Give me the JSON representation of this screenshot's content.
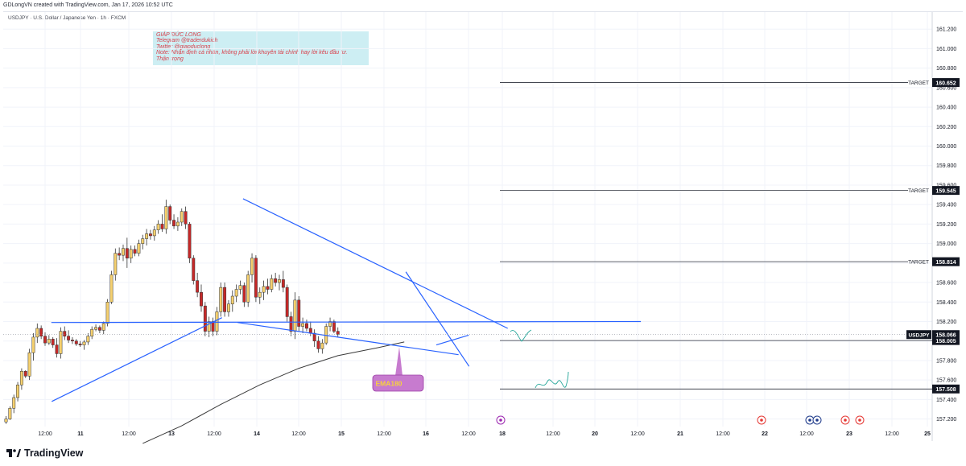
{
  "header": {
    "credit": "GDLongVN created with TradingView.com, Jan 17, 2026 10:52 UTC",
    "symbol_line": "USDJPY · U.S. Dollar / Japanese Yen · 1h · FXCM"
  },
  "note": {
    "lines": [
      "GIÁP ĐỨC LONG",
      "Telegram @traderdukich",
      "Twitter @giapduclong",
      "Note: Nhận định cá nhân, không phải lời khuyên tài chính hay lời kêu đầu tư.",
      "Thận trọng"
    ]
  },
  "footer": {
    "brand": "TradingView",
    "logo_icon": "tradingview-logo-icon"
  },
  "chart_data": {
    "type": "candlestick",
    "symbol": "USDJPY",
    "timeframe": "1h",
    "y_range": [
      157.0,
      161.4
    ],
    "y_ticks": [
      "161.200",
      "161.000",
      "160.800",
      "160.600",
      "160.400",
      "160.200",
      "160.000",
      "159.800",
      "159.600",
      "159.400",
      "159.200",
      "159.000",
      "158.800",
      "158.600",
      "158.400",
      "158.200",
      "158.000",
      "157.800",
      "157.600",
      "157.400",
      "157.200"
    ],
    "x_ticks": [
      "12:00",
      "11",
      "12:00",
      "13",
      "12:00",
      "14",
      "12:00",
      "15",
      "12:00",
      "16",
      "12:00",
      "18",
      "12:00",
      "20",
      "12:00",
      "21",
      "12:00",
      "22",
      "12:00",
      "23",
      "12:00",
      "25"
    ],
    "up_color": "#f5d06e",
    "down_color": "#c62828",
    "candles": [
      [
        157.17,
        157.15,
        157.23,
        157.2
      ],
      [
        157.2,
        157.19,
        157.33,
        157.31
      ],
      [
        157.31,
        157.26,
        157.45,
        157.42
      ],
      [
        157.42,
        157.38,
        157.58,
        157.55
      ],
      [
        157.55,
        157.5,
        157.72,
        157.69
      ],
      [
        157.69,
        157.62,
        157.7,
        157.64
      ],
      [
        157.64,
        157.6,
        157.92,
        157.88
      ],
      [
        157.88,
        157.8,
        158.08,
        158.04
      ],
      [
        158.04,
        157.98,
        158.18,
        158.13
      ],
      [
        158.13,
        158.02,
        158.16,
        158.05
      ],
      [
        158.05,
        157.95,
        158.09,
        157.98
      ],
      [
        157.98,
        157.96,
        158.06,
        158.02
      ],
      [
        158.02,
        157.93,
        158.04,
        157.96
      ],
      [
        157.96,
        157.83,
        158.03,
        157.87
      ],
      [
        157.87,
        157.82,
        158.14,
        158.1
      ],
      [
        158.1,
        158.01,
        158.15,
        158.05
      ],
      [
        158.05,
        157.98,
        158.11,
        158.01
      ],
      [
        158.01,
        157.97,
        158.04,
        158.0
      ],
      [
        158.0,
        157.95,
        158.02,
        157.97
      ],
      [
        157.97,
        157.94,
        158.0,
        157.96
      ],
      [
        157.96,
        157.91,
        158.01,
        157.99
      ],
      [
        157.99,
        157.96,
        158.08,
        158.05
      ],
      [
        158.05,
        158.02,
        158.15,
        158.12
      ],
      [
        158.12,
        158.1,
        158.17,
        158.14
      ],
      [
        158.14,
        158.08,
        158.16,
        158.11
      ],
      [
        158.11,
        158.07,
        158.2,
        158.18
      ],
      [
        158.18,
        158.15,
        158.43,
        158.4
      ],
      [
        158.4,
        158.38,
        158.72,
        158.68
      ],
      [
        158.68,
        158.62,
        158.95,
        158.9
      ],
      [
        158.9,
        158.83,
        158.96,
        158.88
      ],
      [
        158.88,
        158.82,
        158.99,
        158.95
      ],
      [
        158.95,
        158.75,
        159.06,
        158.85
      ],
      [
        158.85,
        158.8,
        158.98,
        158.94
      ],
      [
        158.94,
        158.87,
        158.98,
        158.9
      ],
      [
        158.9,
        158.87,
        159.04,
        159.0
      ],
      [
        159.0,
        158.94,
        159.09,
        159.05
      ],
      [
        159.05,
        158.98,
        159.15,
        159.1
      ],
      [
        159.1,
        159.04,
        159.14,
        159.08
      ],
      [
        159.08,
        159.03,
        159.18,
        159.14
      ],
      [
        159.14,
        159.1,
        159.24,
        159.2
      ],
      [
        159.2,
        159.12,
        159.3,
        159.15
      ],
      [
        159.15,
        159.1,
        159.45,
        159.38
      ],
      [
        159.38,
        159.2,
        159.4,
        159.24
      ],
      [
        159.24,
        159.15,
        159.3,
        159.18
      ],
      [
        159.18,
        159.13,
        159.27,
        159.22
      ],
      [
        159.22,
        159.18,
        159.36,
        159.33
      ],
      [
        159.33,
        159.15,
        159.38,
        159.2
      ],
      [
        159.2,
        158.8,
        159.22,
        158.85
      ],
      [
        158.85,
        158.58,
        158.88,
        158.62
      ],
      [
        158.62,
        158.45,
        158.7,
        158.5
      ],
      [
        158.5,
        158.3,
        158.58,
        158.36
      ],
      [
        158.36,
        158.05,
        158.4,
        158.1
      ],
      [
        158.1,
        158.04,
        158.25,
        158.2
      ],
      [
        158.2,
        158.05,
        158.24,
        158.1
      ],
      [
        158.1,
        158.06,
        158.35,
        158.3
      ],
      [
        158.3,
        158.25,
        158.6,
        158.55
      ],
      [
        158.55,
        158.25,
        158.6,
        158.3
      ],
      [
        158.3,
        158.25,
        158.42,
        158.38
      ],
      [
        158.38,
        158.3,
        158.52,
        158.46
      ],
      [
        158.46,
        158.4,
        158.58,
        158.53
      ],
      [
        158.53,
        158.48,
        158.62,
        158.57
      ],
      [
        158.57,
        158.35,
        158.6,
        158.4
      ],
      [
        158.4,
        158.35,
        158.72,
        158.68
      ],
      [
        158.68,
        158.6,
        158.9,
        158.85
      ],
      [
        158.85,
        158.4,
        158.88,
        158.45
      ],
      [
        158.45,
        158.38,
        158.55,
        158.5
      ],
      [
        158.5,
        158.42,
        158.62,
        158.56
      ],
      [
        158.56,
        158.48,
        158.64,
        158.53
      ],
      [
        158.53,
        158.5,
        158.68,
        158.64
      ],
      [
        158.64,
        158.56,
        158.7,
        158.6
      ],
      [
        158.6,
        158.52,
        158.68,
        158.63
      ],
      [
        158.63,
        158.5,
        158.72,
        158.55
      ],
      [
        158.55,
        158.2,
        158.58,
        158.25
      ],
      [
        158.25,
        158.05,
        158.3,
        158.1
      ],
      [
        158.1,
        158.02,
        158.5,
        158.42
      ],
      [
        158.42,
        158.1,
        158.46,
        158.15
      ],
      [
        158.15,
        158.08,
        158.24,
        158.18
      ],
      [
        158.18,
        158.1,
        158.22,
        158.13
      ],
      [
        158.13,
        158.05,
        158.2,
        158.08
      ],
      [
        158.08,
        157.94,
        158.12,
        158.0
      ],
      [
        158.0,
        157.88,
        158.05,
        157.92
      ],
      [
        157.92,
        157.87,
        158.02,
        157.98
      ],
      [
        157.98,
        157.96,
        158.18,
        158.15
      ],
      [
        158.15,
        158.1,
        158.24,
        158.2
      ],
      [
        158.2,
        158.08,
        158.22,
        158.1
      ],
      [
        158.1,
        158.04,
        158.14,
        158.07
      ]
    ],
    "ema": {
      "label": "EMA180",
      "points": [
        [
          35,
          156.95
        ],
        [
          45,
          157.13
        ],
        [
          55,
          157.35
        ],
        [
          65,
          157.55
        ],
        [
          75,
          157.72
        ],
        [
          85,
          157.85
        ],
        [
          95,
          157.93
        ],
        [
          102,
          157.99
        ]
      ]
    },
    "trendlines": [
      {
        "from": [
          11.7,
          157.38
        ],
        "to": [
          55.3,
          158.24
        ]
      },
      {
        "from": [
          11.6,
          158.19
        ],
        "to": [
          162.6,
          158.2
        ]
      },
      {
        "from": [
          59.3,
          158.19
        ],
        "to": [
          115.9,
          157.86
        ]
      },
      {
        "from": [
          60.7,
          159.46
        ],
        "to": [
          128.5,
          158.13
        ]
      },
      {
        "from": [
          102.4,
          158.71
        ],
        "to": [
          118.6,
          157.74
        ]
      },
      {
        "from": [
          110.2,
          157.96
        ],
        "to": [
          118.5,
          158.06
        ]
      }
    ],
    "targets": [
      {
        "label": "TARGET",
        "value": "160.652",
        "y": 160.652
      },
      {
        "label": "TARGET",
        "value": "159.545",
        "y": 159.545
      },
      {
        "label": "TARGET",
        "value": "158.814",
        "y": 158.814
      }
    ],
    "levels": [
      {
        "value": "158.005",
        "y": 158.005
      },
      {
        "value": "157.508",
        "y": 157.508
      }
    ],
    "last_price": {
      "symbol": "USDJPY",
      "value": "158.066",
      "y": 158.066
    }
  }
}
